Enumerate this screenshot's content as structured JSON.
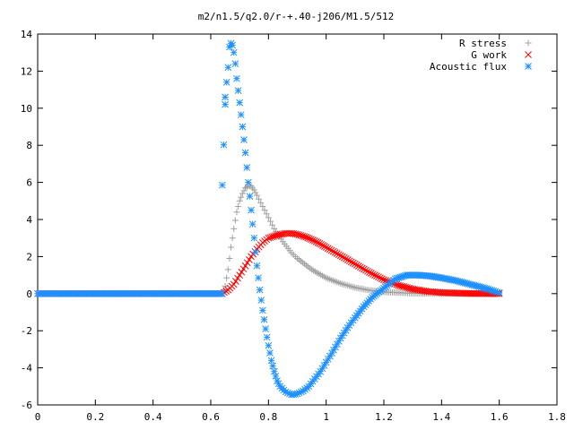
{
  "chart_data": {
    "type": "scatter",
    "title": "m2/n1.5/q2.0/r-+.40-j206/M1.5/512",
    "xlabel": "",
    "ylabel": "",
    "xlim": [
      0,
      1.8
    ],
    "ylim": [
      -6,
      14
    ],
    "xticks": [
      0,
      0.2,
      0.4,
      0.6,
      0.8,
      1,
      1.2,
      1.4,
      1.6,
      1.8
    ],
    "xtick_labels": [
      "0",
      "0.2",
      "0.4",
      "0.6",
      "0.8",
      "1",
      "1.2",
      "1.4",
      "1.6",
      "1.8"
    ],
    "yticks": [
      -6,
      -4,
      -2,
      0,
      2,
      4,
      6,
      8,
      10,
      12,
      14
    ],
    "ytick_labels": [
      "-6",
      "-4",
      "-2",
      "0",
      "2",
      "4",
      "6",
      "8",
      "10",
      "12",
      "14"
    ],
    "grid": false,
    "legend_position": "top-right",
    "series": [
      {
        "name": "R stress",
        "marker": "plus",
        "color": "#a0a0a0",
        "points": [
          [
            0.0,
            0
          ],
          [
            0.1,
            0
          ],
          [
            0.2,
            0
          ],
          [
            0.3,
            0
          ],
          [
            0.4,
            0
          ],
          [
            0.5,
            0
          ],
          [
            0.6,
            0
          ],
          [
            0.64,
            0
          ],
          [
            0.65,
            0.4
          ],
          [
            0.66,
            1.3
          ],
          [
            0.67,
            2.5
          ],
          [
            0.68,
            3.5
          ],
          [
            0.69,
            4.4
          ],
          [
            0.7,
            5.0
          ],
          [
            0.71,
            5.4
          ],
          [
            0.72,
            5.7
          ],
          [
            0.73,
            5.8
          ],
          [
            0.74,
            5.8
          ],
          [
            0.75,
            5.6
          ],
          [
            0.76,
            5.3
          ],
          [
            0.78,
            4.7
          ],
          [
            0.8,
            4.1
          ],
          [
            0.82,
            3.5
          ],
          [
            0.85,
            2.8
          ],
          [
            0.88,
            2.2
          ],
          [
            0.9,
            1.9
          ],
          [
            0.95,
            1.3
          ],
          [
            1.0,
            0.85
          ],
          [
            1.05,
            0.55
          ],
          [
            1.1,
            0.33
          ],
          [
            1.15,
            0.18
          ],
          [
            1.2,
            0.09
          ],
          [
            1.3,
            0.02
          ],
          [
            1.4,
            0
          ],
          [
            1.5,
            0
          ],
          [
            1.6,
            0
          ]
        ]
      },
      {
        "name": "G work",
        "marker": "cross",
        "color": "#ff0000",
        "points": [
          [
            0.0,
            0
          ],
          [
            0.1,
            0
          ],
          [
            0.2,
            0
          ],
          [
            0.3,
            0
          ],
          [
            0.4,
            0
          ],
          [
            0.5,
            0
          ],
          [
            0.6,
            0
          ],
          [
            0.64,
            0
          ],
          [
            0.66,
            0.2
          ],
          [
            0.68,
            0.5
          ],
          [
            0.7,
            1.0
          ],
          [
            0.72,
            1.5
          ],
          [
            0.74,
            2.0
          ],
          [
            0.76,
            2.4
          ],
          [
            0.78,
            2.75
          ],
          [
            0.8,
            3.0
          ],
          [
            0.83,
            3.15
          ],
          [
            0.86,
            3.25
          ],
          [
            0.88,
            3.25
          ],
          [
            0.9,
            3.2
          ],
          [
            0.93,
            3.05
          ],
          [
            0.96,
            2.85
          ],
          [
            1.0,
            2.5
          ],
          [
            1.05,
            2.05
          ],
          [
            1.1,
            1.6
          ],
          [
            1.15,
            1.15
          ],
          [
            1.2,
            0.75
          ],
          [
            1.25,
            0.45
          ],
          [
            1.3,
            0.25
          ],
          [
            1.35,
            0.12
          ],
          [
            1.4,
            0.06
          ],
          [
            1.5,
            0.01
          ],
          [
            1.6,
            0
          ]
        ]
      },
      {
        "name": "Acoustic flux",
        "marker": "star",
        "color": "#1e90ff",
        "points": [
          [
            0.0,
            0
          ],
          [
            0.1,
            0
          ],
          [
            0.2,
            0
          ],
          [
            0.3,
            0
          ],
          [
            0.4,
            0
          ],
          [
            0.5,
            0
          ],
          [
            0.6,
            0
          ],
          [
            0.64,
            0
          ],
          [
            0.64,
            5.85
          ],
          [
            0.65,
            10.2
          ],
          [
            0.65,
            10.6
          ],
          [
            0.66,
            12.2
          ],
          [
            0.665,
            13.3
          ],
          [
            0.67,
            13.5
          ],
          [
            0.675,
            13.4
          ],
          [
            0.68,
            13.0
          ],
          [
            0.685,
            12.4
          ],
          [
            0.69,
            11.6
          ],
          [
            0.7,
            10.3
          ],
          [
            0.71,
            9.0
          ],
          [
            0.72,
            7.6
          ],
          [
            0.73,
            6.0
          ],
          [
            0.74,
            4.5
          ],
          [
            0.75,
            3.0
          ],
          [
            0.76,
            1.5
          ],
          [
            0.77,
            0.2
          ],
          [
            0.78,
            -0.9
          ],
          [
            0.79,
            -1.9
          ],
          [
            0.8,
            -2.8
          ],
          [
            0.81,
            -3.6
          ],
          [
            0.82,
            -4.2
          ],
          [
            0.83,
            -4.7
          ],
          [
            0.84,
            -5.0
          ],
          [
            0.86,
            -5.3
          ],
          [
            0.88,
            -5.45
          ],
          [
            0.9,
            -5.4
          ],
          [
            0.92,
            -5.25
          ],
          [
            0.94,
            -5.0
          ],
          [
            0.96,
            -4.6
          ],
          [
            0.98,
            -4.2
          ],
          [
            1.0,
            -3.7
          ],
          [
            1.02,
            -3.2
          ],
          [
            1.05,
            -2.4
          ],
          [
            1.08,
            -1.7
          ],
          [
            1.1,
            -1.3
          ],
          [
            1.13,
            -0.7
          ],
          [
            1.16,
            -0.2
          ],
          [
            1.2,
            0.3
          ],
          [
            1.24,
            0.8
          ],
          [
            1.28,
            1.0
          ],
          [
            1.32,
            1.0
          ],
          [
            1.36,
            0.95
          ],
          [
            1.4,
            0.85
          ],
          [
            1.45,
            0.7
          ],
          [
            1.5,
            0.5
          ],
          [
            1.55,
            0.3
          ],
          [
            1.58,
            0.15
          ],
          [
            1.6,
            0.05
          ]
        ]
      }
    ]
  }
}
